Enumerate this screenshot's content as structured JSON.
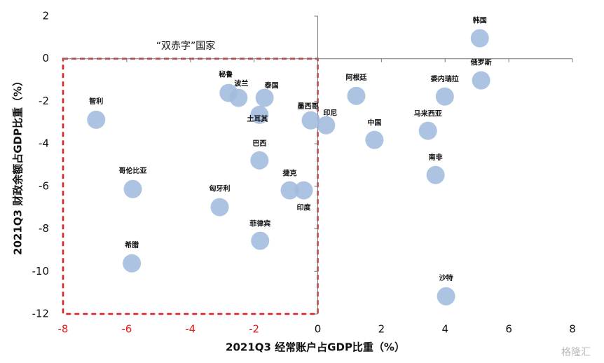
{
  "chart_data": {
    "type": "scatter",
    "annotation": "“双赤字”国家",
    "xlabel": "2021Q3 经常账户占GDP比重（%）",
    "ylabel": "2021Q3 财政余额占GDP比重（%）",
    "watermark": "格隆汇",
    "xlim": [
      -8,
      8
    ],
    "xticks": [
      -8,
      -6,
      -4,
      -2,
      0,
      2,
      4,
      6,
      8
    ],
    "ylim": [
      -12,
      2
    ],
    "yticks": [
      -12,
      -10,
      -8,
      -6,
      -4,
      -2,
      0,
      2
    ],
    "color": "#a3bcdf",
    "region_color": "#e02020",
    "series": [
      {
        "name": null,
        "labels": [
          "智利",
          "哥伦比亚",
          "希腊",
          "匈牙利",
          "秘鲁",
          "波兰",
          "泰国",
          "土耳其",
          "巴西",
          "捷克",
          "印度",
          "菲律宾",
          "墨西哥",
          "印尼",
          "阿根廷",
          "中国",
          "委内瑞拉",
          "马来西亚",
          "南非",
          "沙特",
          "韩国",
          "俄罗斯"
        ],
        "x": [
          -6.96,
          -5.81,
          -5.84,
          -3.08,
          -2.8,
          -2.49,
          -1.67,
          -1.83,
          -1.83,
          -0.88,
          -0.44,
          -1.81,
          -0.22,
          0.26,
          1.21,
          1.78,
          3.99,
          3.46,
          3.7,
          4.03,
          5.09,
          5.13
        ],
        "values": [
          -2.87,
          -6.13,
          -9.62,
          -6.98,
          -1.61,
          -1.84,
          -1.84,
          -2.64,
          -4.78,
          -6.19,
          -6.19,
          -8.56,
          -2.9,
          -3.13,
          -1.75,
          -3.82,
          -1.78,
          -3.39,
          -5.47,
          -11.17,
          0.96,
          -1.02
        ]
      }
    ]
  }
}
